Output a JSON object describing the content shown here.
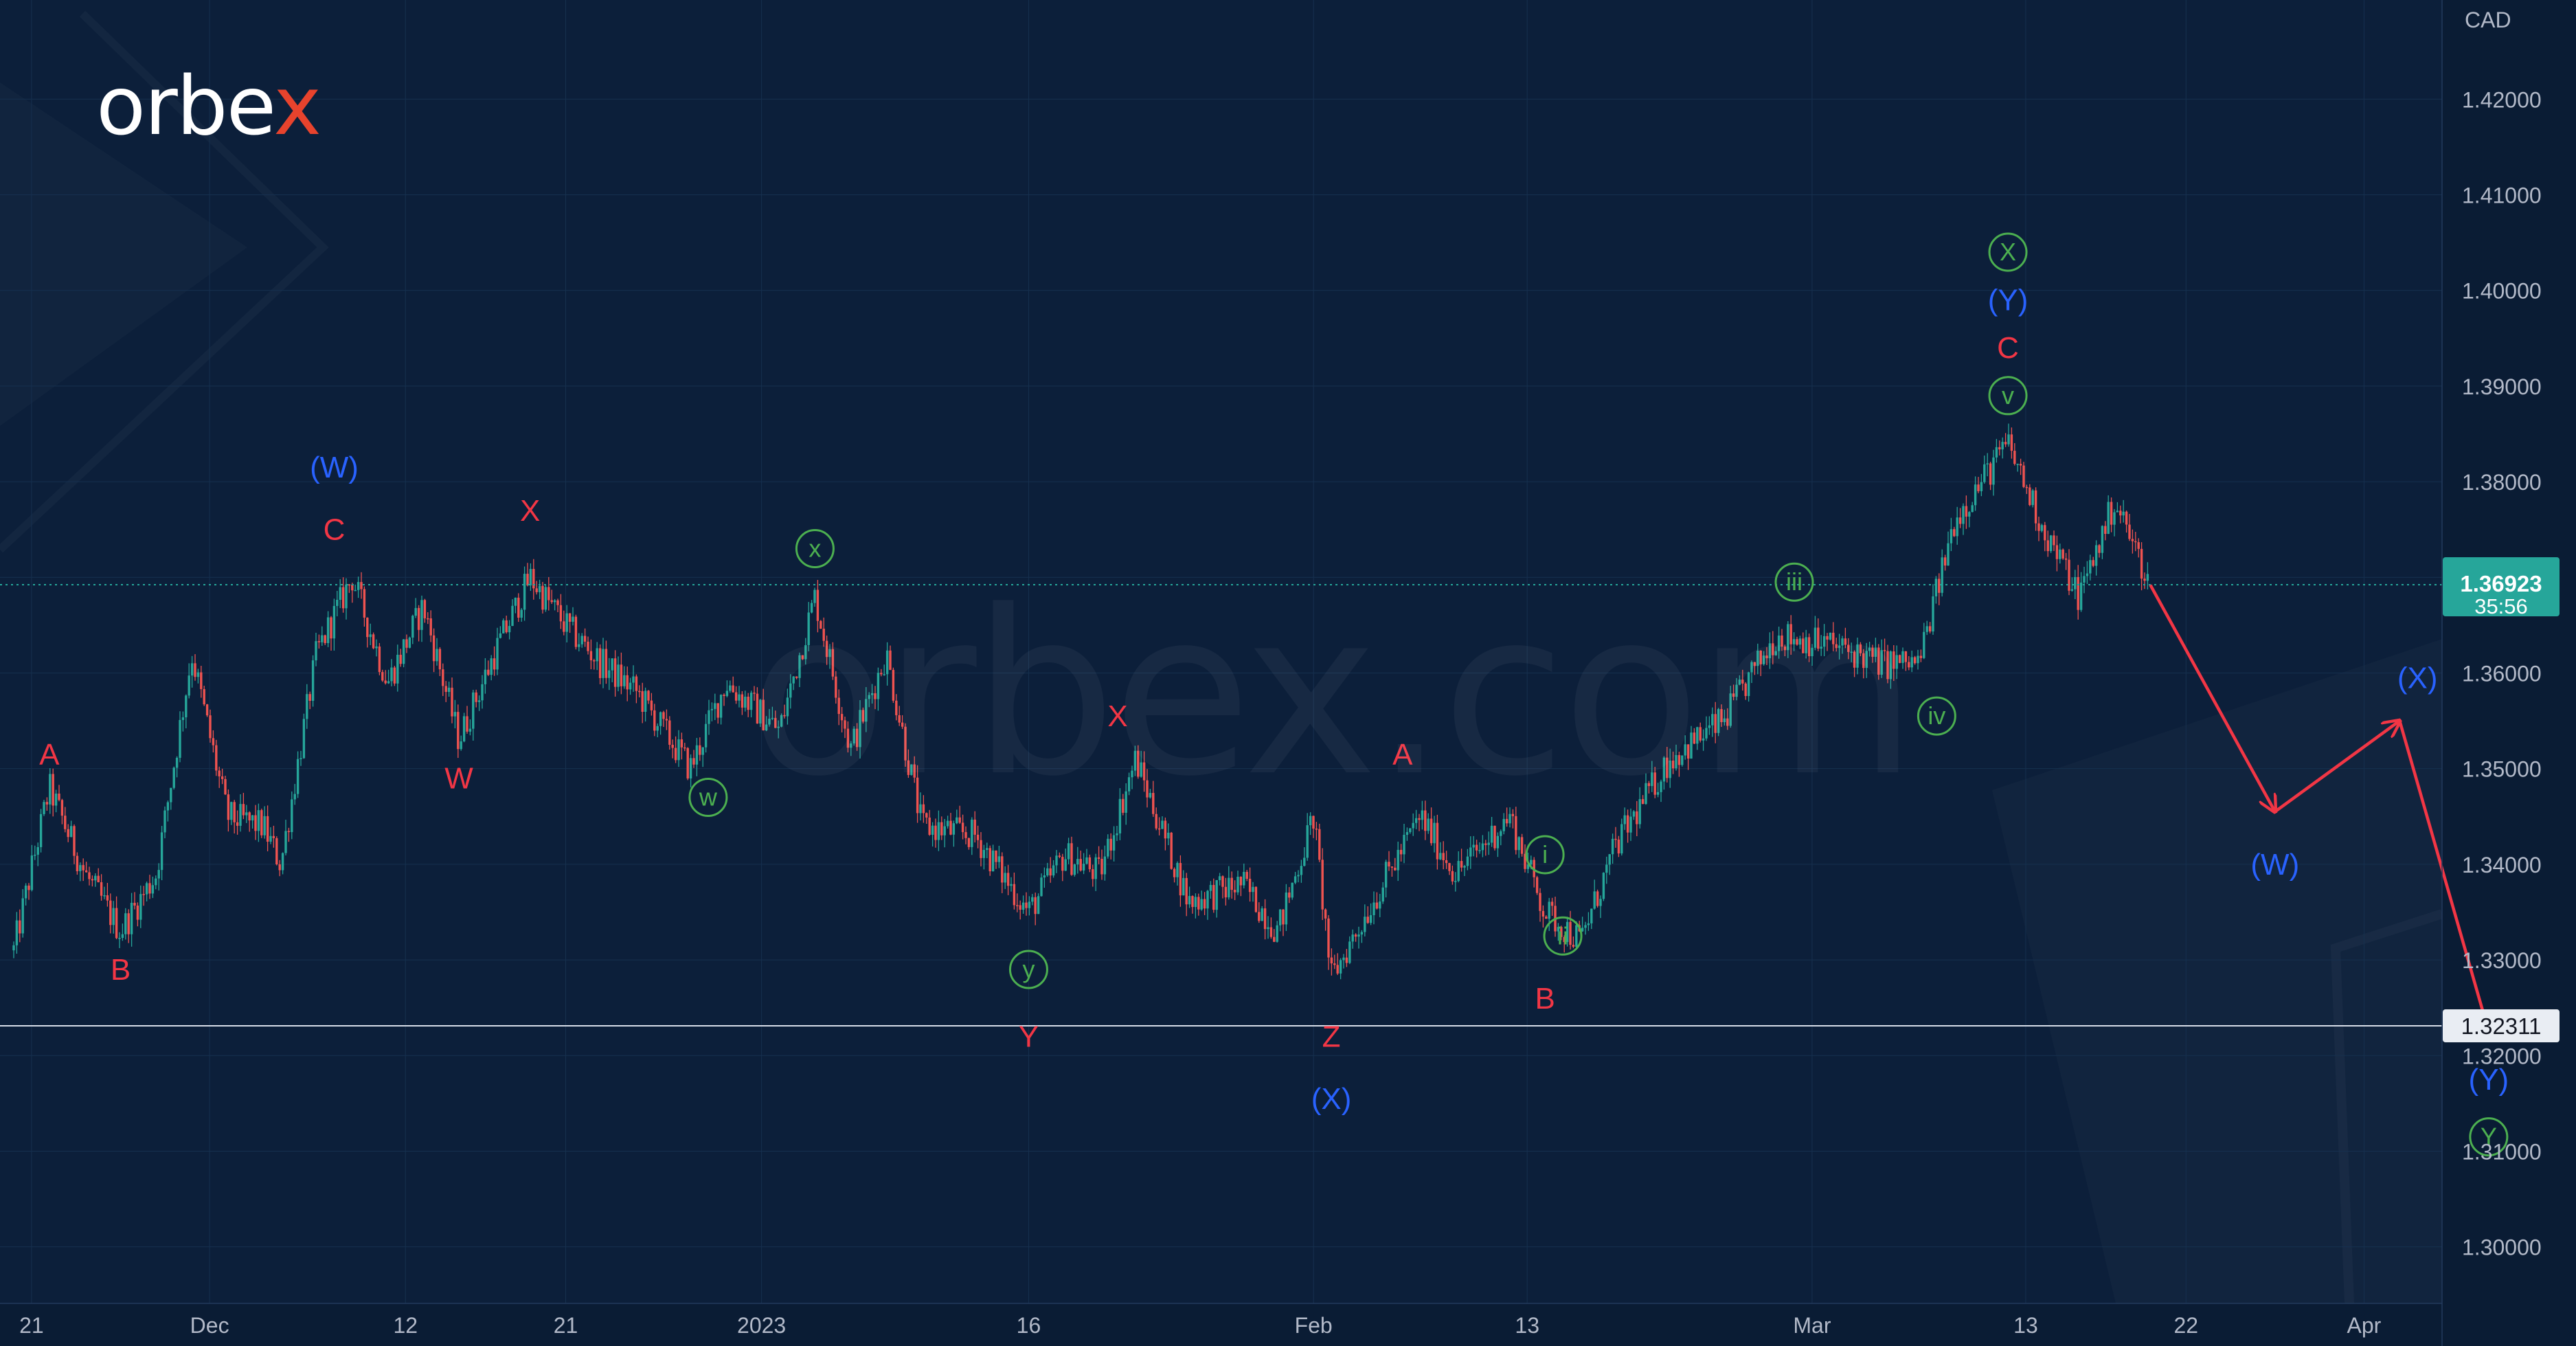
{
  "brand": {
    "logo_text": "orbex",
    "watermark_text": "orbex.com"
  },
  "colors": {
    "background": "#0c1f3a",
    "panel": "#0a1c34",
    "grid": "#16304f",
    "axis_text": "#b2b9c8",
    "candle_up": "#26a69a",
    "candle_down": "#ef5350",
    "wave_red": "#f23645",
    "wave_blue": "#2962ff",
    "wave_green": "#4caf50",
    "forecast_arrow": "#f23645",
    "price_tag": "#26a69a",
    "support_line": "#d7dde8"
  },
  "chart_data": {
    "type": "candlestick",
    "instrument_currency": "CAD",
    "y_axis": {
      "min": 1.292,
      "max": 1.43,
      "ticks": [
        "1.30000",
        "1.31000",
        "1.32000",
        "1.33000",
        "1.34000",
        "1.35000",
        "1.36000",
        "1.37000",
        "1.38000",
        "1.39000",
        "1.40000",
        "1.41000",
        "1.42000"
      ]
    },
    "x_axis": {
      "start": "2022-11-20",
      "end": "2023-04-07",
      "tick_labels": [
        {
          "date": "2022-11-21",
          "label": "21"
        },
        {
          "date": "2022-12-01",
          "label": "Dec"
        },
        {
          "date": "2022-12-12",
          "label": "12"
        },
        {
          "date": "2022-12-21",
          "label": "21"
        },
        {
          "date": "2023-01-01",
          "label": "2023"
        },
        {
          "date": "2023-01-16",
          "label": "16"
        },
        {
          "date": "2023-02-01",
          "label": "Feb"
        },
        {
          "date": "2023-02-13",
          "label": "13"
        },
        {
          "date": "2023-03-01",
          "label": "Mar"
        },
        {
          "date": "2023-03-13",
          "label": "13"
        },
        {
          "date": "2023-03-22",
          "label": "22"
        },
        {
          "date": "2023-04-01",
          "label": "Apr"
        }
      ]
    },
    "price_path": [
      {
        "t": "2022-11-20",
        "p": 1.331
      },
      {
        "t": "2022-11-22",
        "p": 1.348
      },
      {
        "t": "2022-11-24",
        "p": 1.339
      },
      {
        "t": "2022-11-26",
        "p": 1.333
      },
      {
        "t": "2022-11-28",
        "p": 1.339
      },
      {
        "t": "2022-11-30",
        "p": 1.362
      },
      {
        "t": "2022-12-02",
        "p": 1.345
      },
      {
        "t": "2022-12-04",
        "p": 1.344
      },
      {
        "t": "2022-12-05",
        "p": 1.34
      },
      {
        "t": "2022-12-07",
        "p": 1.362
      },
      {
        "t": "2022-12-09",
        "p": 1.37
      },
      {
        "t": "2022-12-11",
        "p": 1.359
      },
      {
        "t": "2022-12-13",
        "p": 1.367
      },
      {
        "t": "2022-12-15",
        "p": 1.353
      },
      {
        "t": "2022-12-17",
        "p": 1.362
      },
      {
        "t": "2022-12-19",
        "p": 1.37
      },
      {
        "t": "2022-12-21",
        "p": 1.365
      },
      {
        "t": "2022-12-23",
        "p": 1.361
      },
      {
        "t": "2022-12-25",
        "p": 1.358
      },
      {
        "t": "2022-12-28",
        "p": 1.35
      },
      {
        "t": "2022-12-30",
        "p": 1.359
      },
      {
        "t": "2023-01-02",
        "p": 1.354
      },
      {
        "t": "2023-01-04",
        "p": 1.368
      },
      {
        "t": "2023-01-06",
        "p": 1.352
      },
      {
        "t": "2023-01-08",
        "p": 1.362
      },
      {
        "t": "2023-01-10",
        "p": 1.344
      },
      {
        "t": "2023-01-13",
        "p": 1.343
      },
      {
        "t": "2023-01-16",
        "p": 1.335
      },
      {
        "t": "2023-01-18",
        "p": 1.341
      },
      {
        "t": "2023-01-20",
        "p": 1.339
      },
      {
        "t": "2023-01-22",
        "p": 1.351
      },
      {
        "t": "2023-01-25",
        "p": 1.336
      },
      {
        "t": "2023-01-28",
        "p": 1.338
      },
      {
        "t": "2023-01-30",
        "p": 1.333
      },
      {
        "t": "2023-02-01",
        "p": 1.345
      },
      {
        "t": "2023-02-02",
        "p": 1.328
      },
      {
        "t": "2023-02-04",
        "p": 1.335
      },
      {
        "t": "2023-02-07",
        "p": 1.345
      },
      {
        "t": "2023-02-09",
        "p": 1.339
      },
      {
        "t": "2023-02-12",
        "p": 1.345
      },
      {
        "t": "2023-02-14",
        "p": 1.335
      },
      {
        "t": "2023-02-16",
        "p": 1.332
      },
      {
        "t": "2023-02-18",
        "p": 1.342
      },
      {
        "t": "2023-02-21",
        "p": 1.351
      },
      {
        "t": "2023-02-24",
        "p": 1.355
      },
      {
        "t": "2023-02-27",
        "p": 1.364
      },
      {
        "t": "2023-03-02",
        "p": 1.363
      },
      {
        "t": "2023-03-05",
        "p": 1.361
      },
      {
        "t": "2023-03-07",
        "p": 1.361
      },
      {
        "t": "2023-03-09",
        "p": 1.376
      },
      {
        "t": "2023-03-12",
        "p": 1.384
      },
      {
        "t": "2023-03-14",
        "p": 1.375
      },
      {
        "t": "2023-03-16",
        "p": 1.368
      },
      {
        "t": "2023-03-18",
        "p": 1.378
      },
      {
        "t": "2023-03-20",
        "p": 1.3692
      }
    ],
    "last_price": {
      "value": "1.36923",
      "timer": "35:56",
      "level": 1.36923
    },
    "support_level": {
      "value": "1.32311",
      "level": 1.32311
    },
    "forecast_path": [
      {
        "t": "2023-03-20",
        "p": 1.3692
      },
      {
        "t": "2023-03-27",
        "p": 1.3455
      },
      {
        "t": "2023-04-03",
        "p": 1.355
      },
      {
        "t": "2023-04-08",
        "p": 1.3225
      }
    ],
    "wave_labels": [
      {
        "text": "A",
        "color": "red",
        "circled": false,
        "t": "2022-11-22",
        "p": 1.3515
      },
      {
        "text": "B",
        "color": "red",
        "circled": false,
        "t": "2022-11-26",
        "p": 1.329
      },
      {
        "text": "C",
        "color": "red",
        "circled": false,
        "t": "2022-12-08",
        "p": 1.375
      },
      {
        "text": "(W)",
        "color": "blue",
        "circled": false,
        "t": "2022-12-08",
        "p": 1.3815
      },
      {
        "text": "W",
        "color": "red",
        "circled": false,
        "t": "2022-12-15",
        "p": 1.349
      },
      {
        "text": "X",
        "color": "red",
        "circled": false,
        "t": "2022-12-19",
        "p": 1.377
      },
      {
        "text": "w",
        "color": "green",
        "circled": true,
        "t": "2022-12-29",
        "p": 1.347
      },
      {
        "text": "x",
        "color": "green",
        "circled": true,
        "t": "2023-01-04",
        "p": 1.373
      },
      {
        "text": "y",
        "color": "green",
        "circled": true,
        "t": "2023-01-16",
        "p": 1.329
      },
      {
        "text": "Y",
        "color": "red",
        "circled": false,
        "t": "2023-01-16",
        "p": 1.322
      },
      {
        "text": "X",
        "color": "red",
        "circled": false,
        "t": "2023-01-21",
        "p": 1.3555
      },
      {
        "text": "Z",
        "color": "red",
        "circled": false,
        "t": "2023-02-02",
        "p": 1.322
      },
      {
        "text": "(X)",
        "color": "blue",
        "circled": false,
        "t": "2023-02-02",
        "p": 1.3155
      },
      {
        "text": "A",
        "color": "red",
        "circled": false,
        "t": "2023-02-06",
        "p": 1.3515
      },
      {
        "text": "i",
        "color": "green",
        "circled": true,
        "t": "2023-02-14",
        "p": 1.341
      },
      {
        "text": "ii",
        "color": "green",
        "circled": true,
        "t": "2023-02-15",
        "p": 1.3325
      },
      {
        "text": "B",
        "color": "red",
        "circled": false,
        "t": "2023-02-14",
        "p": 1.326
      },
      {
        "text": "iii",
        "color": "green",
        "circled": true,
        "t": "2023-02-28",
        "p": 1.3695
      },
      {
        "text": "iv",
        "color": "green",
        "circled": true,
        "t": "2023-03-08",
        "p": 1.3555
      },
      {
        "text": "v",
        "color": "green",
        "circled": true,
        "t": "2023-03-12",
        "p": 1.389
      },
      {
        "text": "C",
        "color": "red",
        "circled": false,
        "t": "2023-03-12",
        "p": 1.394
      },
      {
        "text": "(Y)",
        "color": "blue",
        "circled": false,
        "t": "2023-03-12",
        "p": 1.399
      },
      {
        "text": "X",
        "color": "green",
        "circled": true,
        "t": "2023-03-12",
        "p": 1.404
      },
      {
        "text": "(W)",
        "color": "blue",
        "circled": false,
        "t": "2023-03-27",
        "p": 1.34
      },
      {
        "text": "(X)",
        "color": "blue",
        "circled": false,
        "t": "2023-04-04",
        "p": 1.3595
      },
      {
        "text": "(Y)",
        "color": "blue",
        "circled": false,
        "t": "2023-04-08",
        "p": 1.3175
      },
      {
        "text": "Y",
        "color": "green",
        "circled": true,
        "t": "2023-04-08",
        "p": 1.3115
      }
    ]
  }
}
